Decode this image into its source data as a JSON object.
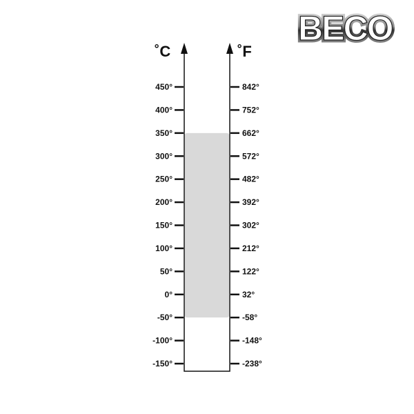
{
  "logo": {
    "text": "BECO"
  },
  "units": {
    "celsius": "˚C",
    "fahrenheit": "˚F"
  },
  "scale": {
    "celsius_ticks": [
      450,
      400,
      350,
      300,
      250,
      200,
      150,
      100,
      50,
      0,
      -50,
      -100,
      -150
    ],
    "celsius_labels": [
      "450°",
      "400°",
      "350°",
      "300°",
      "250°",
      "200°",
      "150°",
      "100°",
      "50°",
      "0°",
      "-50°",
      "-100°",
      "-150°"
    ],
    "fahrenheit_labels": [
      "842°",
      "752°",
      "662°",
      "572°",
      "482°",
      "392°",
      "302°",
      "212°",
      "122°",
      "32°",
      "-58°",
      "-148°",
      "-238°"
    ]
  },
  "range": {
    "min_c": -50,
    "max_c": 350,
    "fill_color": "#d9d9d9"
  }
}
